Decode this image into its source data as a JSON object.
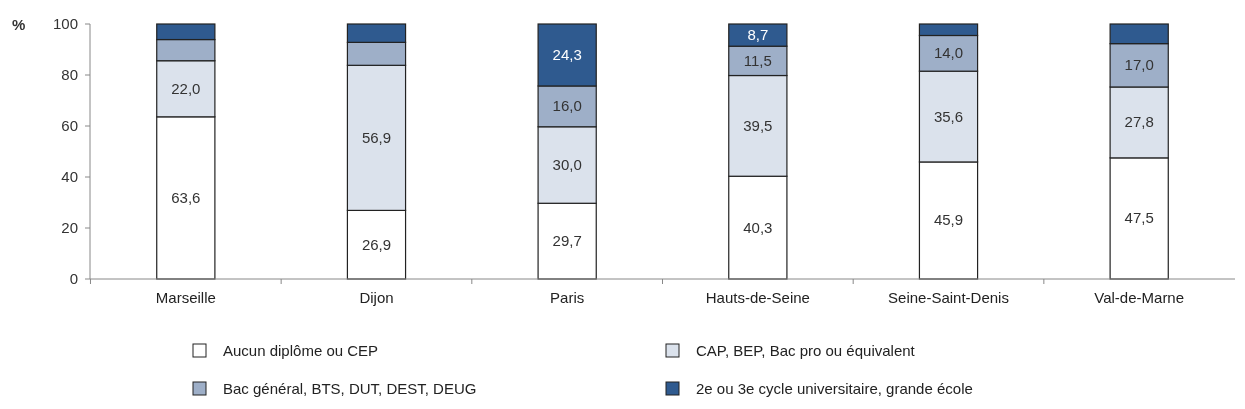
{
  "chart_data": {
    "type": "bar",
    "stacked": true,
    "ylabel": "%",
    "categories": [
      "Marseille",
      "Dijon",
      "Paris",
      "Hauts-de-Seine",
      "Seine-Saint-Denis",
      "Val-de-Marne"
    ],
    "series": [
      {
        "name": "Aucun diplôme ou CEP",
        "color": "#ffffff",
        "values": [
          63.6,
          26.9,
          29.7,
          40.3,
          45.9,
          47.5
        ],
        "value_labels": [
          "63,6",
          "26,9",
          "29,7",
          "40,3",
          "45,9",
          "47,5"
        ]
      },
      {
        "name": "CAP, BEP, Bac pro ou équivalent",
        "color": "#dbe2ec",
        "values": [
          22.0,
          56.9,
          30.0,
          39.5,
          35.6,
          27.8
        ],
        "value_labels": [
          "22,0",
          "56,9",
          "30,0",
          "39,5",
          "35,6",
          "27,8"
        ]
      },
      {
        "name": "Bac général, BTS, DUT, DEST, DEUG",
        "color": "#9eafc8",
        "values": [
          8.3,
          9.0,
          16.0,
          11.5,
          14.0,
          17.0
        ],
        "value_labels": [
          null,
          null,
          "16,0",
          "11,5",
          "14,0",
          "17,0"
        ]
      },
      {
        "name": "2e ou 3e cycle universitaire, grande école",
        "color": "#2f5a8f",
        "values": [
          6.1,
          7.2,
          24.3,
          8.7,
          4.5,
          7.7
        ],
        "value_labels": [
          null,
          null,
          "24,3",
          "8,7",
          null,
          null
        ]
      }
    ],
    "ylim": [
      0,
      100
    ],
    "yticks": [
      0,
      20,
      40,
      60,
      80,
      100
    ],
    "grid": false,
    "legend": "bottom"
  }
}
